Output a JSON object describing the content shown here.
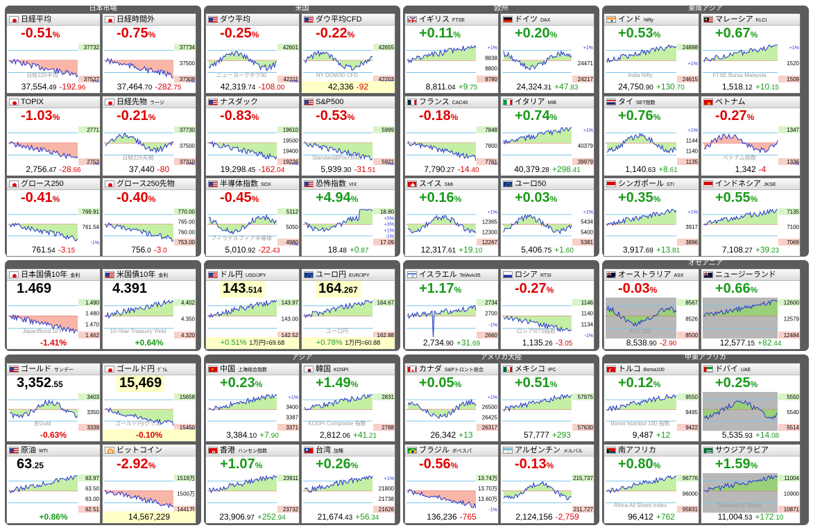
{
  "panels": [
    {
      "title": "日本市場",
      "box": [
        7,
        8,
        283,
        362
      ]
    },
    {
      "title": "米国",
      "box": [
        294,
        8,
        283,
        362
      ]
    },
    {
      "title": "欧州",
      "box": [
        581,
        8,
        283,
        362
      ]
    },
    {
      "title": "東南アジア",
      "box": [
        868,
        8,
        298,
        362
      ]
    },
    {
      "title": "",
      "box": [
        7,
        375,
        283,
        131
      ]
    },
    {
      "title": "",
      "box": [
        294,
        375,
        283,
        131
      ]
    },
    {
      "title": "",
      "box": [
        581,
        375,
        283,
        131
      ]
    },
    {
      "title": "オセアニア",
      "box": [
        868,
        375,
        298,
        131
      ]
    },
    {
      "title": "",
      "box": [
        7,
        511,
        283,
        246
      ]
    },
    {
      "title": "アジア",
      "box": [
        294,
        511,
        283,
        246
      ]
    },
    {
      "title": "アメリカ大陸",
      "box": [
        581,
        511,
        283,
        246
      ]
    },
    {
      "title": "中東アフリカ",
      "box": [
        868,
        511,
        298,
        246
      ]
    }
  ],
  "tiles": [
    {
      "name": "日経平均",
      "sub": "",
      "flag": "jp",
      "pct": "-0.51",
      "dir": "dn",
      "price": "37,554",
      "dec": ".49",
      "chg": "-192",
      "chgdec": ".96",
      "levels": [
        "37732",
        "37527"
      ],
      "bottom": "-1%",
      "shade": "red",
      "shape": "down",
      "wm": "日経225平均"
    },
    {
      "name": "日経時間外",
      "sub": "",
      "flag": "jp",
      "pct": "-0.75",
      "dir": "dn",
      "price": "37,464",
      "dec": ".70",
      "chg": "-282",
      "chgdec": ".75",
      "levels": [
        "37734",
        "37500",
        "37309"
      ],
      "bottom": "-1%",
      "shade": "red",
      "shape": "down",
      "wm": ""
    },
    {
      "name": "ダウ平均",
      "sub": "",
      "flag": "us",
      "pct": "-0.25",
      "dir": "dn",
      "price": "42,319",
      "dec": ".74",
      "chg": "-108",
      "chgdec": ".00",
      "levels": [
        "42601",
        "42211"
      ],
      "bottom": "-1%",
      "shade": "green",
      "shape": "wave",
      "wm": "ニューヨークダウ30"
    },
    {
      "name": "ダウ平均CFD",
      "sub": "",
      "flag": "us",
      "pct": "-0.22",
      "dir": "dn",
      "price": "42,336",
      "dec": "",
      "chg": "-92",
      "chgdec": "",
      "levels": [
        "42655",
        "42203"
      ],
      "bottom": "-1%",
      "shade": "green",
      "shape": "wave",
      "wm": "NY DOW30 CFD",
      "yellow": true
    },
    {
      "name": "イギリス",
      "sub": "FTSE",
      "flag": "uk",
      "pct": "+0.11",
      "dir": "up",
      "price": "8,811",
      "dec": ".04",
      "chg": "+9",
      "chgdec": ".75",
      "levels": [
        "+1%",
        "8838",
        "8800",
        "8780"
      ],
      "bottom": "",
      "shade": "green",
      "shape": "up",
      "wm": ""
    },
    {
      "name": "ドイツ",
      "sub": "DAX",
      "flag": "de",
      "pct": "+0.20",
      "dir": "up",
      "price": "24,324",
      "dec": ".31",
      "chg": "+47",
      "chgdec": ".83",
      "levels": [
        "+1%",
        "24471",
        "24217"
      ],
      "bottom": "",
      "shade": "green",
      "shape": "wave",
      "wm": ""
    },
    {
      "name": "インド",
      "sub": "Nifty",
      "flag": "in",
      "pct": "+0.53",
      "dir": "up",
      "price": "24,750",
      "dec": ".90",
      "chg": "+130",
      "chgdec": ".70",
      "levels": [
        "24898",
        "+1%",
        "24615"
      ],
      "bottom": "",
      "shade": "green",
      "shape": "up",
      "wm": "India Nifty"
    },
    {
      "name": "マレーシア",
      "sub": "KLCI",
      "flag": "my",
      "pct": "+0.67",
      "dir": "up",
      "price": "1,518",
      "dec": ".12",
      "chg": "+10",
      "chgdec": ".15",
      "levels": [
        "+1%",
        "1520",
        "1509"
      ],
      "bottom": "",
      "shade": "green",
      "shape": "up",
      "wm": "FTSE Bursa Malaysia"
    },
    {
      "name": "TOPIX",
      "sub": "",
      "flag": "jp",
      "pct": "-1.03",
      "dir": "dn",
      "price": "2,756",
      "dec": ".47",
      "chg": "-28",
      "chgdec": ".66",
      "levels": [
        "2771",
        "2753"
      ],
      "bottom": "-1%",
      "shade": "red",
      "shape": "down",
      "wm": ""
    },
    {
      "name": "日経先物",
      "sub": "ラージ",
      "flag": "jp",
      "pct": "-0.21",
      "dir": "dn",
      "price": "37,440",
      "dec": "",
      "chg": "-80",
      "chgdec": "",
      "levels": [
        "37730",
        "37500",
        "37310"
      ],
      "bottom": "-1%",
      "shade": "green",
      "shape": "wave",
      "wm": "日経225先物"
    },
    {
      "name": "ナスダック",
      "sub": "",
      "flag": "us",
      "pct": "-0.83",
      "dir": "dn",
      "price": "19,298",
      "dec": ".45",
      "chg": "-162",
      "chgdec": ".04",
      "levels": [
        "19610",
        "19500",
        "19400",
        "19226"
      ],
      "bottom": "-1%",
      "shade": "green",
      "shape": "down",
      "wm": ""
    },
    {
      "name": "S&P500",
      "sub": "",
      "flag": "us",
      "pct": "-0.53",
      "dir": "dn",
      "price": "5,939",
      "dec": ".30",
      "chg": "-31",
      "chgdec": ".51",
      "levels": [
        "5999",
        "5921"
      ],
      "bottom": "-1%",
      "shade": "green",
      "shape": "down",
      "wm": "Standard&Poors500"
    },
    {
      "name": "フランス",
      "sub": "CAC40",
      "flag": "fr",
      "pct": "-0.18",
      "dir": "dn",
      "price": "7,790",
      "dec": ".27",
      "chg": "-14",
      "chgdec": ".40",
      "levels": [
        "7848",
        "7800",
        "7761"
      ],
      "bottom": "-1%",
      "shade": "green",
      "shape": "down",
      "wm": ""
    },
    {
      "name": "イタリア",
      "sub": "MIB",
      "flag": "it",
      "pct": "+0.74",
      "dir": "up",
      "price": "40,379",
      "dec": ".28",
      "chg": "+298",
      "chgdec": ".41",
      "levels": [
        "+1%",
        "40379",
        "39979"
      ],
      "bottom": "",
      "shade": "green",
      "shape": "up",
      "wm": ""
    },
    {
      "name": "タイ",
      "sub": "SET指数",
      "flag": "th",
      "pct": "+0.76",
      "dir": "up",
      "price": "1,140",
      "dec": ".63",
      "chg": "+8",
      "chgdec": ".61",
      "levels": [
        "+1%",
        "1144",
        "1140",
        "1135"
      ],
      "bottom": "",
      "shade": "green",
      "shape": "wave",
      "wm": ""
    },
    {
      "name": "ベトナム",
      "sub": "",
      "flag": "vn",
      "pct": "-0.27",
      "dir": "dn",
      "price": "1,342",
      "dec": "",
      "chg": "-4",
      "chgdec": "",
      "levels": [
        "1347",
        "1336"
      ],
      "bottom": "-1%",
      "shade": "red",
      "shape": "wave",
      "wm": "ベトナム指数"
    },
    {
      "name": "グロース250",
      "sub": "",
      "flag": "jp",
      "pct": "-0.41",
      "dir": "dn",
      "price": "761",
      "dec": ".54",
      "chg": "-3",
      "chgdec": ".15",
      "levels": [
        "769.91",
        "761.54",
        "-1%"
      ],
      "bottom": "",
      "shade": "green",
      "shape": "down",
      "wm": ""
    },
    {
      "name": "グロース250先物",
      "sub": "",
      "flag": "jp",
      "pct": "-0.40",
      "dir": "dn",
      "price": "756",
      "dec": ".0",
      "chg": "-3",
      "chgdec": ".0",
      "levels": [
        "770.00",
        "765.00",
        "760.00",
        "753.00"
      ],
      "bottom": "",
      "shade": "green",
      "shape": "down",
      "wm": ""
    },
    {
      "name": "半導体指数",
      "sub": "SOX",
      "flag": "us",
      "pct": "-0.45",
      "dir": "dn",
      "price": "5,010",
      "dec": ".92",
      "chg": "-22",
      "chgdec": ".43",
      "levels": [
        "5112",
        "5050",
        "4980"
      ],
      "bottom": "-1%",
      "shade": "green",
      "shape": "wave",
      "wm": "フィラデルフィア半導体"
    },
    {
      "name": "恐怖指数",
      "sub": "VIX",
      "flag": "us",
      "pct": "+4.94",
      "dir": "up",
      "price": "18",
      "dec": ".48",
      "chg": "+0",
      "chgdec": ".87",
      "levels": [
        "18.80",
        "+5%",
        "+3%",
        "+1%",
        "-1%",
        "17.09"
      ],
      "bottom": "",
      "shade": "green",
      "shape": "vix",
      "wm": ""
    },
    {
      "name": "スイス",
      "sub": "SMI",
      "flag": "ch",
      "pct": "+0.16",
      "dir": "up",
      "price": "12,317",
      "dec": ".61",
      "chg": "+19",
      "chgdec": ".10",
      "levels": [
        "+1%",
        "12365",
        "12300",
        "12267"
      ],
      "bottom": "",
      "shade": "green",
      "shape": "wave",
      "wm": ""
    },
    {
      "name": "ユーロ50",
      "sub": "",
      "flag": "eu",
      "pct": "+0.03",
      "dir": "up",
      "price": "5,406",
      "dec": ".75",
      "chg": "+1",
      "chgdec": ".60",
      "levels": [
        "+1%",
        "5434",
        "5400",
        "5381"
      ],
      "bottom": "",
      "shade": "green",
      "shape": "wave",
      "wm": ""
    },
    {
      "name": "シンガポール",
      "sub": "STI",
      "flag": "sg",
      "pct": "+0.35",
      "dir": "up",
      "price": "3,917",
      "dec": ".69",
      "chg": "+13",
      "chgdec": ".81",
      "levels": [
        "+1%",
        "3917",
        "3896"
      ],
      "bottom": "",
      "shade": "green",
      "shape": "up",
      "wm": ""
    },
    {
      "name": "インドネシア",
      "sub": "JKSE",
      "flag": "id",
      "pct": "+0.55",
      "dir": "up",
      "price": "7,108",
      "dec": ".27",
      "chg": "+39",
      "chgdec": ".23",
      "levels": [
        "7135",
        "7100",
        "7069"
      ],
      "bottom": "",
      "shade": "green",
      "shape": "up",
      "wm": ""
    },
    {
      "name": "日本国債10年",
      "sub": "金利",
      "flag": "jp",
      "pct": "1.469",
      "dir": "big",
      "price": "",
      "dec": "",
      "chg": "-1.41%",
      "chgdec": "",
      "levels": [
        "1.490",
        "1.480",
        "1.470",
        "1.462"
      ],
      "bottom": "",
      "shade": "red",
      "shape": "down",
      "wm": "JapanBond 10Y"
    },
    {
      "name": "米国債10年",
      "sub": "金利",
      "flag": "us",
      "pct": "4.391",
      "dir": "big",
      "price": "",
      "dec": "",
      "chg": "+0.64%",
      "chgdec": "",
      "levels": [
        "4.402",
        "4.350",
        "4.320"
      ],
      "bottom": "",
      "shade": "green",
      "shape": "up",
      "wm": "10-Year Treasury Yield"
    },
    {
      "name": "ドル円",
      "sub": "USD/JPY",
      "flag": "us",
      "pct": "143",
      "dir": "fx",
      "price": "",
      "dec": ".514",
      "chg": "+0.51%",
      "chgdec": "",
      "extra": "1万円=69.68",
      "levels": [
        "143.97",
        "143.00",
        "142.52"
      ],
      "bottom": "",
      "shade": "green",
      "shape": "up",
      "wm": ""
    },
    {
      "name": "ユーロ円",
      "sub": "EUR/JPY",
      "flag": "eu",
      "pct": "164",
      "dir": "fx",
      "price": "",
      "dec": ".267",
      "chg": "+0.78%",
      "chgdec": "",
      "extra": "1万円=60.88",
      "levels": [
        "164.67",
        "162.88"
      ],
      "bottom": "",
      "shade": "green",
      "shape": "up",
      "wm": "ユーロ円"
    },
    {
      "name": "イスラエル",
      "sub": "TelAviv35",
      "flag": "il",
      "pct": "+1.17",
      "dir": "up",
      "price": "2,734",
      "dec": ".90",
      "chg": "+31",
      "chgdec": ".69",
      "levels": [
        "2734",
        "2700",
        "-1%",
        "2660"
      ],
      "bottom": "",
      "shade": "green",
      "shape": "spike",
      "wm": ""
    },
    {
      "name": "ロシア",
      "sub": "RTSI",
      "flag": "ru",
      "pct": "-0.27",
      "dir": "dn",
      "price": "1,135",
      "dec": ".26",
      "chg": "-3",
      "chgdec": ".05",
      "levels": [
        "1146",
        "1140",
        "1134",
        "-1%"
      ],
      "bottom": "",
      "shade": "green",
      "shape": "down",
      "wm": "ロシアRTS指数"
    },
    {
      "name": "オーストラリア",
      "sub": "ASX",
      "flag": "au",
      "pct": "-0.03",
      "dir": "dn",
      "price": "8,538",
      "dec": ".90",
      "chg": "-2",
      "chgdec": ".90",
      "levels": [
        "8567",
        "8526",
        "8500"
      ],
      "bottom": "",
      "shade": "gray",
      "shape": "wave",
      "wm": "ASX 200"
    },
    {
      "name": "ニュージーランド",
      "sub": "",
      "flag": "nz",
      "pct": "+0.66",
      "dir": "up",
      "price": "12,577",
      "dec": ".15",
      "chg": "+82",
      "chgdec": ".44",
      "levels": [
        "12600",
        "12579",
        "12484"
      ],
      "bottom": "",
      "shade": "gray",
      "shape": "up",
      "wm": ""
    },
    {
      "name": "ゴールド",
      "sub": "サンデー",
      "flag": "us",
      "pct": "3,352",
      "dir": "big",
      "price": "",
      "dec": ".55",
      "chg": "-0.63%",
      "chgdec": "",
      "levels": [
        "3403",
        "3350",
        "3339"
      ],
      "bottom": "",
      "shade": "green",
      "shape": "wave",
      "wm": "金Gold"
    },
    {
      "name": "ゴールド円",
      "sub": "ｸﾞﾗﾑ",
      "flag": "jp",
      "pct": "15,469",
      "dir": "fxbig",
      "price": "",
      "dec": "",
      "chg": "-0.10%",
      "chgdec": "",
      "levels": [
        "15658",
        "15450"
      ],
      "bottom": "-1%",
      "shade": "green",
      "shape": "down",
      "wm": "ゴールド円/グラム"
    },
    {
      "name": "中国",
      "sub": "上海総合指数",
      "flag": "cn",
      "pct": "+0.23",
      "dir": "up",
      "price": "3,384",
      "dec": ".10",
      "chg": "+7",
      "chgdec": ".90",
      "levels": [
        "+1%",
        "3400",
        "3387",
        "3371"
      ],
      "bottom": "",
      "shade": "green",
      "shape": "up",
      "wm": ""
    },
    {
      "name": "韓国",
      "sub": "KOSPI",
      "flag": "kr",
      "pct": "+1.49",
      "dir": "up",
      "price": "2,812",
      "dec": ".06",
      "chg": "+41",
      "chgdec": ".21",
      "levels": [
        "2831",
        "2788"
      ],
      "bottom": "",
      "shade": "green",
      "shape": "up",
      "wm": "KOSPI Composite 指数"
    },
    {
      "name": "カナダ",
      "sub": "S&Pトロント総合",
      "flag": "ca",
      "pct": "+0.05",
      "dir": "up",
      "price": "26,342",
      "dec": "",
      "chg": "+13",
      "chgdec": "",
      "levels": [
        "+1%",
        "26500",
        "26425",
        "26317"
      ],
      "bottom": "",
      "shade": "green",
      "shape": "wave",
      "wm": ""
    },
    {
      "name": "メキシコ",
      "sub": "IPC",
      "flag": "mx",
      "pct": "+0.51",
      "dir": "up",
      "price": "57,777",
      "dec": "",
      "chg": "+293",
      "chgdec": "",
      "levels": [
        "57975",
        "57630"
      ],
      "bottom": "",
      "shade": "green",
      "shape": "up",
      "wm": ""
    },
    {
      "name": "トルコ",
      "sub": "Borsa100",
      "flag": "tr",
      "pct": "+0.12",
      "dir": "up",
      "price": "9,487",
      "dec": "",
      "chg": "+12",
      "chgdec": "",
      "levels": [
        "9550",
        "9495",
        "9422"
      ],
      "bottom": "",
      "shade": "green",
      "shape": "up",
      "wm": "Borsa Istanbul 100 指数"
    },
    {
      "name": "ドバイ",
      "sub": "UAE",
      "flag": "ae",
      "pct": "+0.25",
      "dir": "up",
      "price": "5,535",
      "dec": ".93",
      "chg": "+14",
      "chgdec": ".08",
      "levels": [
        "5550",
        "5540",
        "5514"
      ],
      "bottom": "",
      "shade": "gray",
      "shape": "wave",
      "wm": ""
    },
    {
      "name": "原油",
      "sub": "WTI",
      "flag": "us",
      "pct": "63",
      "dir": "big",
      "price": "",
      "dec": ".25",
      "chg": "+0.86%",
      "chgdec": "",
      "levels": [
        "63.97",
        "63.50",
        "63.00",
        "62.51"
      ],
      "bottom": "",
      "shade": "green",
      "shape": "up",
      "wm": ""
    },
    {
      "name": "ビットコイン",
      "sub": "",
      "flag": "btc",
      "pct": "-2.92",
      "dir": "dn",
      "price": "14,567,229",
      "dec": "",
      "chg": "",
      "chgdec": "",
      "levels": [
        "1519万",
        "1500万",
        "1441万"
      ],
      "bottom": "",
      "shade": "red",
      "shape": "down",
      "wm": "",
      "yellow": true
    },
    {
      "name": "香港",
      "sub": "ハンセン指数",
      "flag": "hk",
      "pct": "+1.07",
      "dir": "up",
      "price": "23,906",
      "dec": ".97",
      "chg": "+252",
      "chgdec": ".94",
      "levels": [
        "23911",
        "23732"
      ],
      "bottom": "",
      "shade": "green",
      "shape": "up",
      "wm": ""
    },
    {
      "name": "台湾",
      "sub": "加権",
      "flag": "tw",
      "pct": "+0.26",
      "dir": "up",
      "price": "21,674",
      "dec": ".43",
      "chg": "+56",
      "chgdec": ".34",
      "levels": [
        "+1%",
        "21800",
        "21738",
        "21626"
      ],
      "bottom": "",
      "shade": "green",
      "shape": "up",
      "wm": ""
    },
    {
      "name": "ブラジル",
      "sub": "ボベスパ",
      "flag": "br",
      "pct": "-0.56",
      "dir": "dn",
      "price": "136,236",
      "dec": "",
      "chg": "-765",
      "chgdec": "",
      "levels": [
        "13.74万",
        "13.70万",
        "13.60万",
        "-1%"
      ],
      "bottom": "",
      "shade": "red",
      "shape": "down",
      "wm": ""
    },
    {
      "name": "アルゼンチン",
      "sub": "メルバル",
      "flag": "ar",
      "pct": "-0.13",
      "dir": "dn",
      "price": "2,124,156",
      "dec": "",
      "chg": "-2,759",
      "chgdec": "",
      "levels": [
        "215,737",
        "211,727"
      ],
      "bottom": "",
      "shade": "green",
      "shape": "wave",
      "wm": ""
    },
    {
      "name": "南アフリカ",
      "sub": "",
      "flag": "za",
      "pct": "+0.80",
      "dir": "up",
      "price": "96,412",
      "dec": "",
      "chg": "+762",
      "chgdec": "",
      "levels": [
        "96776",
        "96000",
        "95831"
      ],
      "bottom": "",
      "shade": "green",
      "shape": "up",
      "wm": "Africa All Share Index"
    },
    {
      "name": "サウジアラビア",
      "sub": "",
      "flag": "sa",
      "pct": "+1.59",
      "dir": "up",
      "price": "11,004",
      "dec": ".53",
      "chg": "+172",
      "chgdec": ".10",
      "levels": [
        "11004",
        "10900",
        "10871"
      ],
      "bottom": "",
      "shade": "gray",
      "shape": "up",
      "wm": "Tadawul All Share"
    }
  ]
}
